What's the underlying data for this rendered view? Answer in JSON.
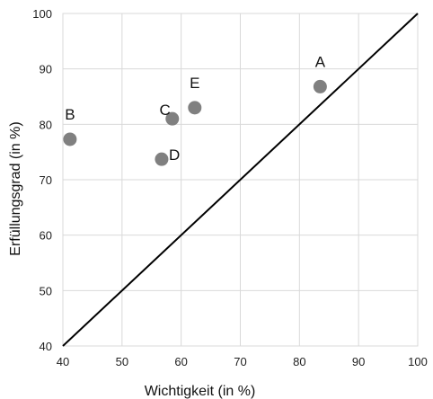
{
  "chart_data": {
    "type": "scatter",
    "title": "",
    "xlabel": "Wichtigkeit (in %)",
    "ylabel": "Erfüllungsgrad (in %)",
    "xlim": [
      40,
      100
    ],
    "ylim": [
      40,
      100
    ],
    "xticks": [
      40,
      50,
      60,
      70,
      80,
      90,
      100
    ],
    "yticks": [
      40,
      50,
      60,
      70,
      80,
      90,
      100
    ],
    "grid": true,
    "legend": "none",
    "point_color": "#808080",
    "grid_color": "#d9d9d9",
    "reference_line": {
      "from": [
        40,
        40
      ],
      "to": [
        100,
        100
      ],
      "color": "#000000"
    },
    "points": [
      {
        "label": "A",
        "x": 83.5,
        "y": 86.8
      },
      {
        "label": "B",
        "x": 41.2,
        "y": 77.3
      },
      {
        "label": "C",
        "x": 58.5,
        "y": 81.0
      },
      {
        "label": "D",
        "x": 56.7,
        "y": 73.7
      },
      {
        "label": "E",
        "x": 62.3,
        "y": 83.0
      }
    ]
  }
}
